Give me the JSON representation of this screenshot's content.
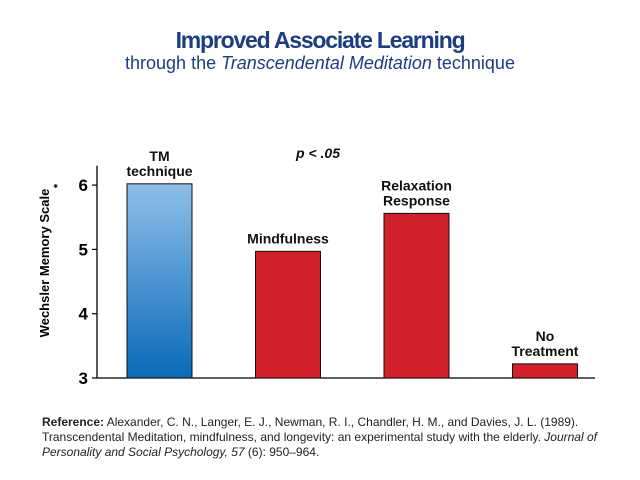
{
  "title": "Improved Associate Learning",
  "subtitle_pre": "through the ",
  "subtitle_ital": "Transcendental Meditation",
  "subtitle_post": " technique",
  "significance": "p < .05",
  "colors": {
    "title": "#1a3d86",
    "tm_top": "#8ebfe8",
    "tm_bottom": "#0a6ab8",
    "red": "#d3212b"
  },
  "chart_data": {
    "type": "bar",
    "categories": [
      "TM technique",
      "Mindfulness",
      "Relaxation Response",
      "No Treatment"
    ],
    "category_label_lines": [
      [
        "TM",
        "technique"
      ],
      [
        "Mindfulness"
      ],
      [
        "Relaxation",
        "Response"
      ],
      [
        "No",
        "Treatment"
      ]
    ],
    "values": [
      6.02,
      4.97,
      5.56,
      3.22
    ],
    "ylabel": "Wechsler Memory Scale",
    "ylabel_mark": "*",
    "ylim": [
      3,
      6.3
    ],
    "yticks": [
      3,
      4,
      5,
      6
    ],
    "bar_styles": [
      "blue-gradient",
      "red",
      "red",
      "red"
    ],
    "grid": false
  },
  "reference": {
    "label": "Reference:",
    "text": " Alexander, C. N., Langer, E. J., Newman, R. I., Chandler, H. M., and Davies, J. L. (1989). Transcendental Meditation, mindfulness, and longevity: an experimental study with the elderly. ",
    "journal": "Journal of Personality and Social Psychology, 57",
    "tail": " (6): 950–964."
  }
}
